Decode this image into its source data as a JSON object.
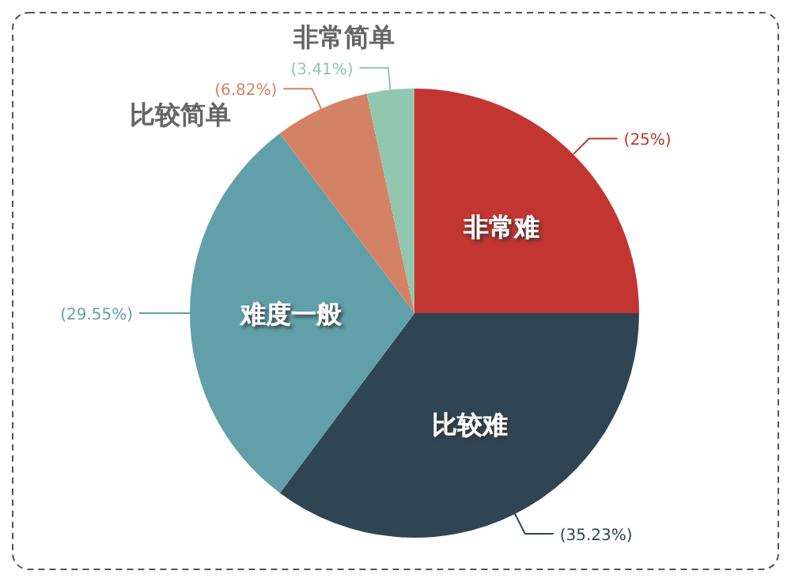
{
  "chart_data": {
    "type": "pie",
    "categories": [
      "非常难",
      "比较难",
      "难度一般",
      "比较简单",
      "非常简单"
    ],
    "values": [
      25,
      35.23,
      29.55,
      6.82,
      3.41
    ],
    "colors": [
      "#c23531",
      "#2f4554",
      "#61a0a8",
      "#d48265",
      "#91c7ae"
    ],
    "value_labels": [
      "(25%)",
      "(35.23%)",
      "(29.55%)",
      "(6.82%)",
      "(3.41%)"
    ]
  }
}
